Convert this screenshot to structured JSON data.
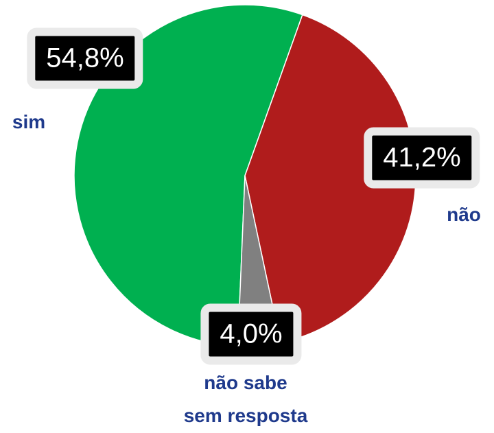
{
  "chart_data": {
    "type": "pie",
    "categories": [
      "sim",
      "não",
      "não sabe\nsem resposta"
    ],
    "values": [
      54.8,
      41.2,
      4.0
    ],
    "value_labels": [
      "54,8%",
      "41,2%",
      "4,0%"
    ],
    "colors": [
      "#00b050",
      "#b01c1c",
      "#808080"
    ]
  }
}
